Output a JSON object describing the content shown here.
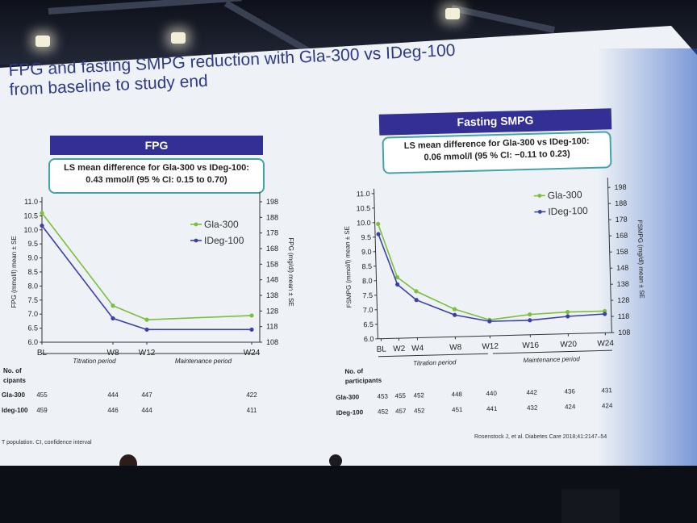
{
  "slide": {
    "title_line1": "FPG and fasting SMPG reduction with Gla-300 vs IDeg-100",
    "title_line2": "from baseline to study end",
    "footnote_left": "T population. CI, confidence interval",
    "footnote_right": "Rosenstock J, et al. Diabetes Care 2018;41:2147–54"
  },
  "colors": {
    "gla300": "#7bbf3a",
    "ideg100": "#3b3fa8",
    "header": "#332f94",
    "callout_border": "#43a4a8"
  },
  "chart_data": [
    {
      "type": "line",
      "panel_title": "FPG",
      "callout": [
        "LS mean difference for Gla-300 vs IDeg-100:",
        "0.43 mmol/l (95 % CI: 0.15 to 0.70)"
      ],
      "x_labels": [
        "BL",
        "W8",
        "W12",
        "W24"
      ],
      "x_weeks": [
        0,
        8,
        12,
        24
      ],
      "ylabel": "FPG (mmol/l) mean ± SE",
      "ylabel_right": "FPG (mg/dl) mean ± SE",
      "ylim": [
        6.0,
        11.0
      ],
      "yticks": [
        "6.0",
        "6.5",
        "7.0",
        "7.5",
        "8.0",
        "8.5",
        "9.0",
        "9.5",
        "10.0",
        "10.5",
        "11.0"
      ],
      "yticks_right": [
        "108",
        "118",
        "128",
        "138",
        "148",
        "158",
        "168",
        "178",
        "188",
        "198"
      ],
      "series": [
        {
          "name": "Gla-300",
          "values": [
            10.6,
            7.3,
            6.8,
            6.95
          ]
        },
        {
          "name": "IDeg-100",
          "values": [
            10.15,
            6.85,
            6.45,
            6.45
          ]
        }
      ],
      "periods": [
        "Titration period",
        "Maintenance period"
      ],
      "participants": {
        "label": [
          "No. of",
          "cipants"
        ],
        "rows": [
          {
            "name": "Gla-300",
            "values": [
              "455",
              "444",
              "447",
              "422"
            ]
          },
          {
            "name": "Ideg-100",
            "values": [
              "459",
              "446",
              "444",
              "411"
            ]
          }
        ]
      }
    },
    {
      "type": "line",
      "panel_title": "Fasting SMPG",
      "callout": [
        "LS mean difference for Gla-300 vs IDeg-100:",
        "0.06 mmol/l (95 % CI: −0.11 to 0.23)"
      ],
      "x_labels": [
        "BL",
        "W2",
        "W4",
        "W8",
        "W12",
        "W16",
        "W20",
        "W24"
      ],
      "x_weeks": [
        0,
        2,
        4,
        8,
        12,
        16,
        20,
        24
      ],
      "ylabel": "FSMPG (mmol/l) mean ± SE",
      "ylabel_right": "FSMPG (mg/dl) mean ± SE",
      "ylim": [
        6.0,
        11.0
      ],
      "yticks": [
        "6.0",
        "6.5",
        "7.0",
        "7.5",
        "8.0",
        "8.5",
        "9.0",
        "9.5",
        "10.0",
        "10.5",
        "11.0"
      ],
      "yticks_right": [
        "108",
        "118",
        "128",
        "138",
        "148",
        "158",
        "168",
        "178",
        "188",
        "198"
      ],
      "series": [
        {
          "name": "Gla-300",
          "values": [
            9.95,
            8.1,
            7.6,
            6.95,
            6.55,
            6.7,
            6.75,
            6.75
          ]
        },
        {
          "name": "IDeg-100",
          "values": [
            9.6,
            7.85,
            7.3,
            6.75,
            6.5,
            6.5,
            6.6,
            6.65
          ]
        }
      ],
      "periods": [
        "Titration period",
        "Maintenance period"
      ],
      "participants": {
        "label": [
          "No. of",
          "participants"
        ],
        "rows": [
          {
            "name": "Gla-300",
            "values": [
              "453",
              "455",
              "452",
              "448",
              "440",
              "442",
              "436",
              "431"
            ]
          },
          {
            "name": "IDeg-100",
            "values": [
              "452",
              "457",
              "452",
              "451",
              "441",
              "432",
              "424",
              "424"
            ]
          }
        ]
      }
    }
  ]
}
